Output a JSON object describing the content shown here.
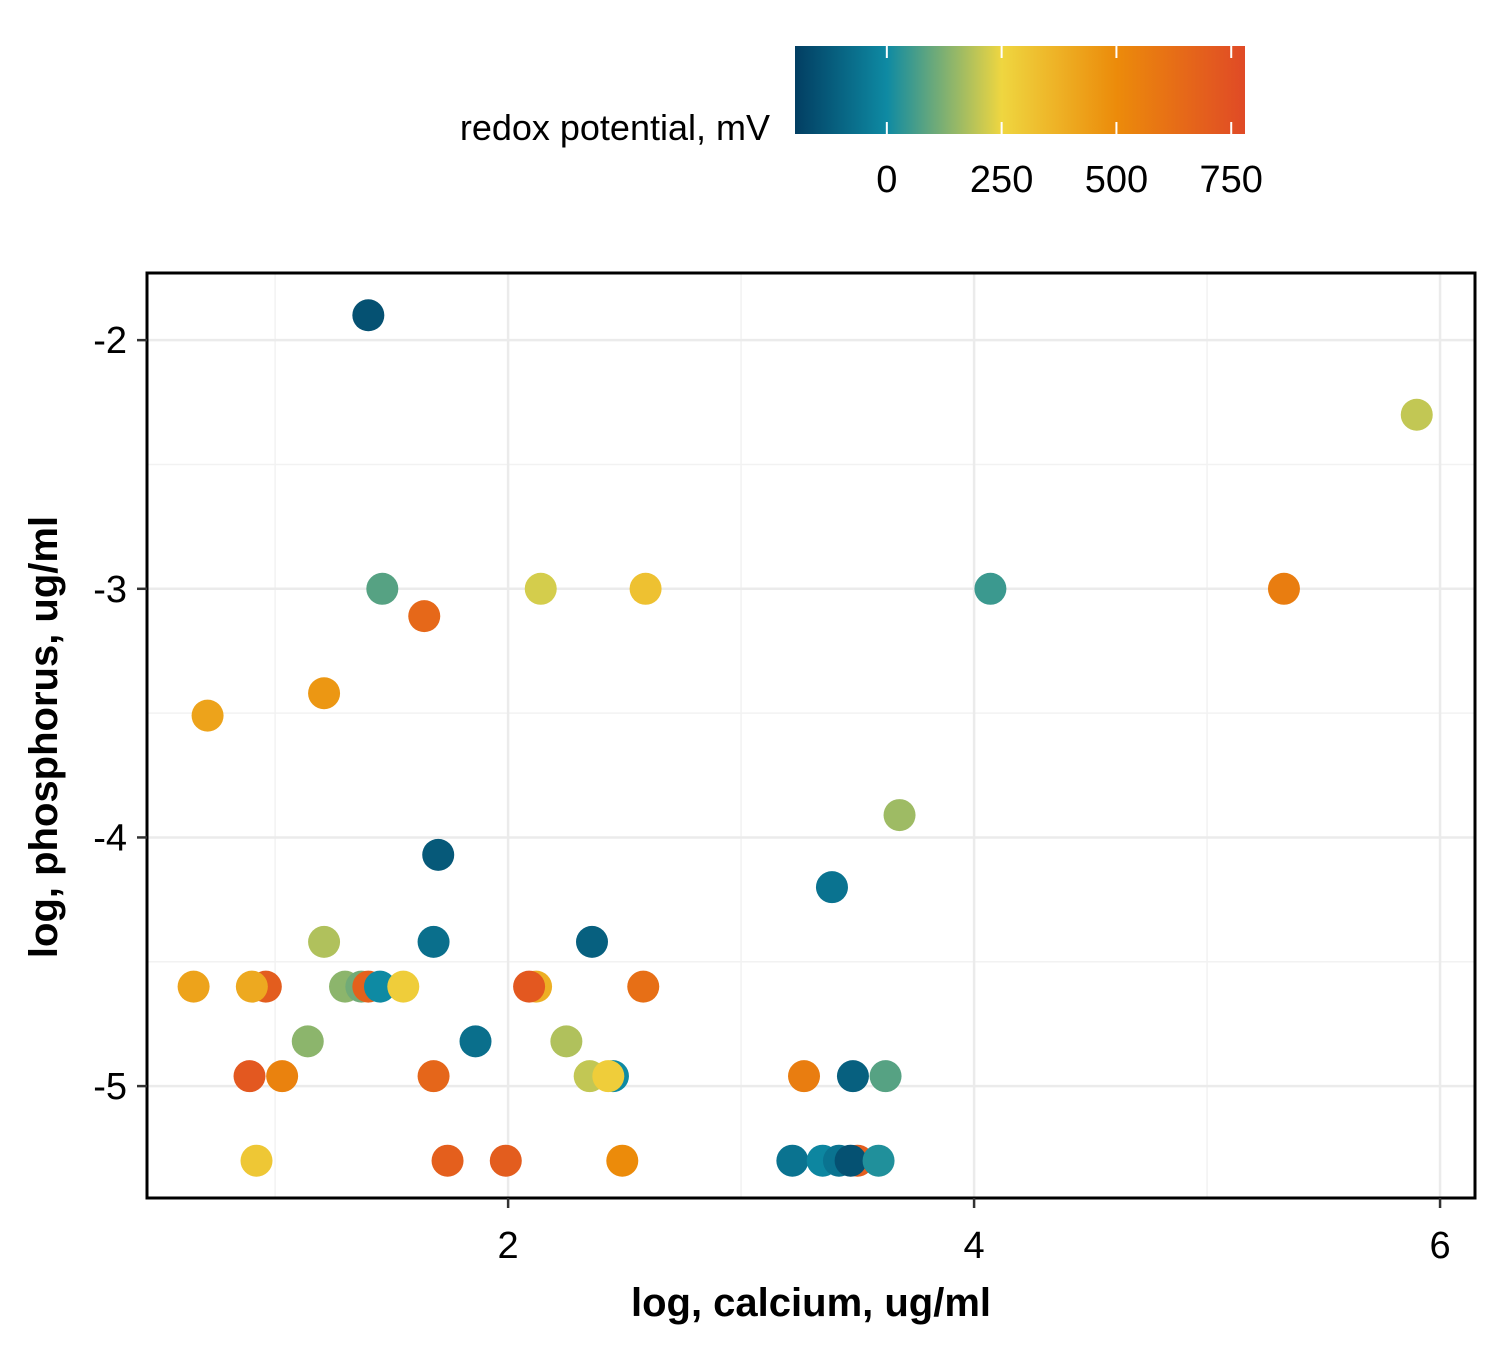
{
  "chart_data": {
    "type": "scatter",
    "title": "",
    "xlabel": "log, calcium, ug/ml",
    "ylabel": "log, phosphorus, ug/ml",
    "xlim": [
      0.45,
      6.15
    ],
    "ylim": [
      -5.45,
      -1.73
    ],
    "x_ticks": [
      2,
      4,
      6
    ],
    "x_tick_labels": [
      "2",
      "4",
      "6"
    ],
    "y_ticks": [
      -2,
      -3,
      -4,
      -5
    ],
    "y_tick_labels": [
      "-2",
      "-3",
      "-4",
      "-5"
    ],
    "grid": true,
    "legend": {
      "title": "redox potential, mV",
      "placement": "top",
      "range": [
        -200,
        780
      ],
      "ticks": [
        0,
        250,
        500,
        750
      ],
      "tick_labels": [
        "0",
        "250",
        "500",
        "750"
      ],
      "colors": [
        {
          "value": -200,
          "color": "#023e62"
        },
        {
          "value": 0,
          "color": "#0e8aa3"
        },
        {
          "value": 250,
          "color": "#efd640"
        },
        {
          "value": 500,
          "color": "#ec8b0a"
        },
        {
          "value": 780,
          "color": "#e04a26"
        }
      ]
    },
    "points": [
      {
        "x": 1.4,
        "y": -1.9,
        "z": -150
      },
      {
        "x": 5.9,
        "y": -2.3,
        "z": 200
      },
      {
        "x": 1.46,
        "y": -3.0,
        "z": 80
      },
      {
        "x": 2.14,
        "y": -3.0,
        "z": 220
      },
      {
        "x": 2.59,
        "y": -3.0,
        "z": 320
      },
      {
        "x": 4.07,
        "y": -3.0,
        "z": 50
      },
      {
        "x": 5.33,
        "y": -3.0,
        "z": 560
      },
      {
        "x": 1.64,
        "y": -3.11,
        "z": 650
      },
      {
        "x": 0.71,
        "y": -3.51,
        "z": 420
      },
      {
        "x": 1.21,
        "y": -3.42,
        "z": 460
      },
      {
        "x": 3.68,
        "y": -3.91,
        "z": 160
      },
      {
        "x": 1.7,
        "y": -4.07,
        "z": -130
      },
      {
        "x": 3.39,
        "y": -4.2,
        "z": -60
      },
      {
        "x": 1.21,
        "y": -4.42,
        "z": 180
      },
      {
        "x": 1.68,
        "y": -4.42,
        "z": -70
      },
      {
        "x": 2.36,
        "y": -4.42,
        "z": -110
      },
      {
        "x": 0.65,
        "y": -4.6,
        "z": 420
      },
      {
        "x": 0.96,
        "y": -4.6,
        "z": 700
      },
      {
        "x": 0.9,
        "y": -4.6,
        "z": 400
      },
      {
        "x": 1.3,
        "y": -4.6,
        "z": 140
      },
      {
        "x": 1.37,
        "y": -4.6,
        "z": 110
      },
      {
        "x": 1.4,
        "y": -4.6,
        "z": 680
      },
      {
        "x": 1.45,
        "y": -4.6,
        "z": 0
      },
      {
        "x": 1.55,
        "y": -4.6,
        "z": 280
      },
      {
        "x": 2.12,
        "y": -4.6,
        "z": 380
      },
      {
        "x": 2.09,
        "y": -4.6,
        "z": 720
      },
      {
        "x": 2.58,
        "y": -4.6,
        "z": 620
      },
      {
        "x": 1.14,
        "y": -4.82,
        "z": 140
      },
      {
        "x": 1.86,
        "y": -4.82,
        "z": -70
      },
      {
        "x": 2.25,
        "y": -4.82,
        "z": 180
      },
      {
        "x": 0.89,
        "y": -4.96,
        "z": 720
      },
      {
        "x": 1.03,
        "y": -4.96,
        "z": 540
      },
      {
        "x": 1.68,
        "y": -4.96,
        "z": 660
      },
      {
        "x": 2.45,
        "y": -4.96,
        "z": 0
      },
      {
        "x": 2.35,
        "y": -4.96,
        "z": 200
      },
      {
        "x": 2.43,
        "y": -4.96,
        "z": 280
      },
      {
        "x": 3.27,
        "y": -4.96,
        "z": 560
      },
      {
        "x": 3.48,
        "y": -4.96,
        "z": -110
      },
      {
        "x": 3.62,
        "y": -4.96,
        "z": 80
      },
      {
        "x": 0.92,
        "y": -5.3,
        "z": 300
      },
      {
        "x": 1.74,
        "y": -5.3,
        "z": 690
      },
      {
        "x": 1.99,
        "y": -5.3,
        "z": 700
      },
      {
        "x": 2.49,
        "y": -5.3,
        "z": 500
      },
      {
        "x": 3.22,
        "y": -5.3,
        "z": -60
      },
      {
        "x": 3.35,
        "y": -5.3,
        "z": -10
      },
      {
        "x": 3.42,
        "y": -5.3,
        "z": -60
      },
      {
        "x": 3.5,
        "y": -5.3,
        "z": 700
      },
      {
        "x": 3.47,
        "y": -5.3,
        "z": -150
      },
      {
        "x": 3.59,
        "y": -5.3,
        "z": 20
      }
    ]
  }
}
